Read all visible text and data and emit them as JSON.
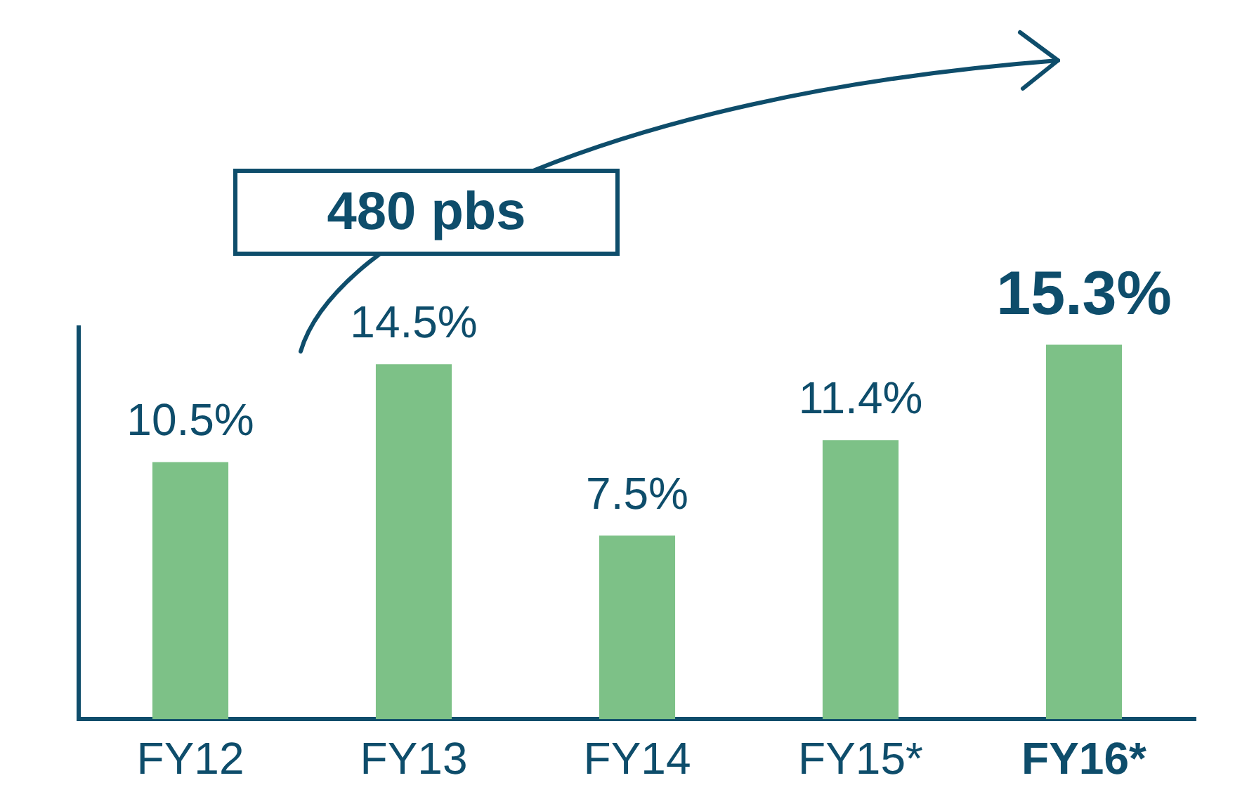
{
  "chart_data": {
    "type": "bar",
    "categories": [
      "FY12",
      "FY13",
      "FY14",
      "FY15*",
      "FY16*"
    ],
    "values": [
      10.5,
      14.5,
      7.5,
      11.4,
      15.3
    ],
    "value_labels": [
      "10.5%",
      "14.5%",
      "7.5%",
      "11.4%",
      "15.3%"
    ],
    "color": "#7dc187",
    "annotations": [
      "480 pbs"
    ],
    "tick_labels": "x",
    "grid": false,
    "legend": false
  }
}
